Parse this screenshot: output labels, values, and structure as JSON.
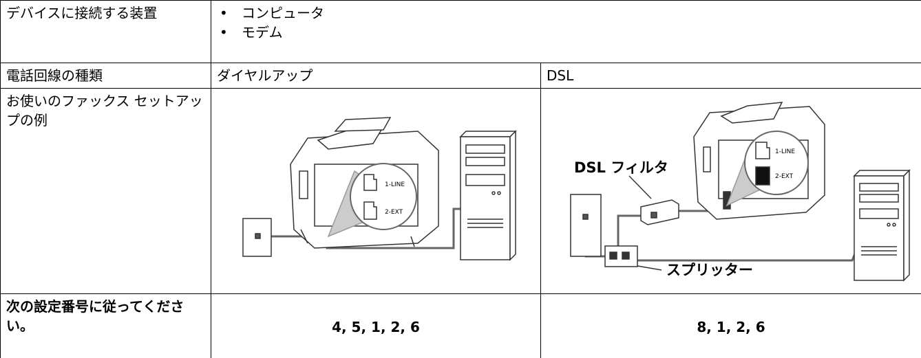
{
  "table": {
    "rows": [
      {
        "label": "デバイスに接続する装置",
        "items": [
          "コンピュータ",
          "モデム"
        ]
      },
      {
        "label": "電話回線の種類",
        "cells": [
          "ダイヤルアップ",
          "DSL"
        ]
      },
      {
        "label": "お使いのファックス セットアップの例"
      },
      {
        "label": "次の設定番号に従ってください。",
        "cells": [
          "4, 5, 1, 2, 6",
          "8, 1, 2, 6"
        ]
      }
    ]
  },
  "illustrations": {
    "dialup": {
      "port_1": "1-LINE",
      "port_2": "2-EXT"
    },
    "dsl": {
      "port_1": "1-LINE",
      "port_2": "2-EXT",
      "filter": "DSL フィルタ",
      "splitter": "スプリッター"
    }
  }
}
